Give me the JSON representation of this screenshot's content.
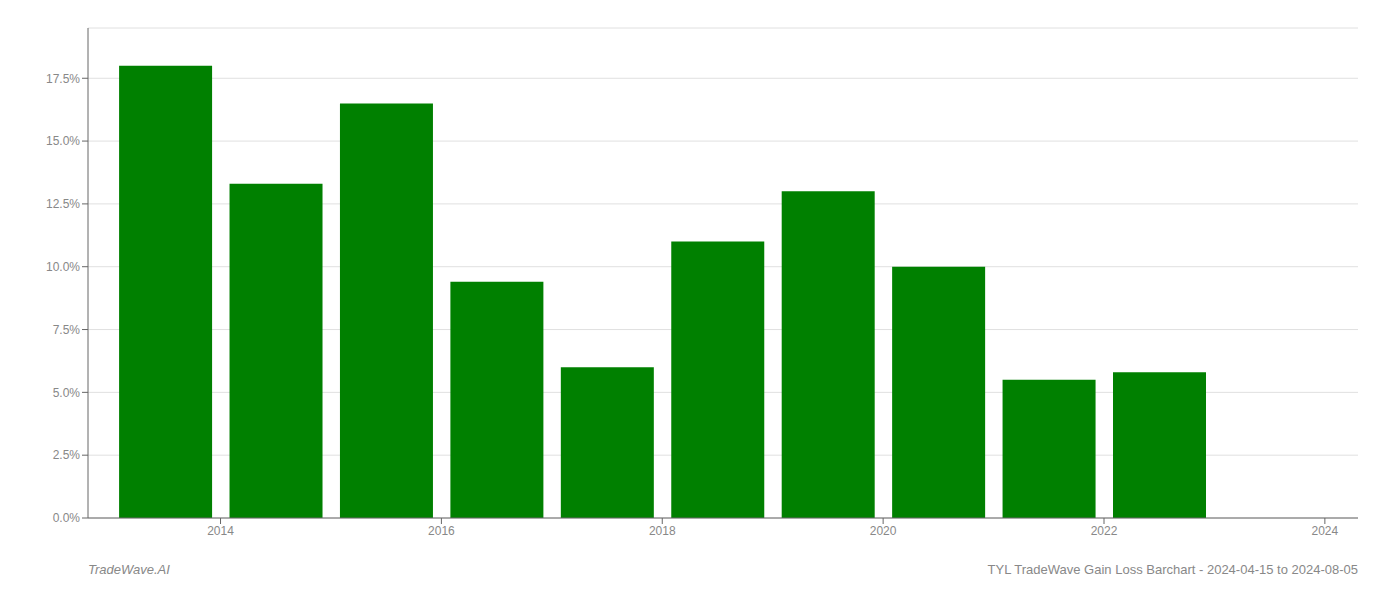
{
  "chart_data": {
    "type": "bar",
    "x": [
      2014,
      2015,
      2016,
      2017,
      2018,
      2019,
      2020,
      2021,
      2022,
      2023
    ],
    "values": [
      0.18,
      0.133,
      0.165,
      0.094,
      0.06,
      0.11,
      0.13,
      0.1,
      0.055,
      0.058
    ],
    "color": "#008000",
    "xlim": [
      2013.3,
      2024.8
    ],
    "xticks": [
      {
        "value": 2014.5,
        "label": "2014"
      },
      {
        "value": 2016.5,
        "label": "2016"
      },
      {
        "value": 2018.5,
        "label": "2018"
      },
      {
        "value": 2020.5,
        "label": "2020"
      },
      {
        "value": 2022.5,
        "label": "2022"
      },
      {
        "value": 2024.5,
        "label": "2024"
      }
    ],
    "ylim": [
      0,
      0.195
    ],
    "yticks": [
      {
        "value": 0.0,
        "label": "0.0%"
      },
      {
        "value": 0.025,
        "label": "2.5%"
      },
      {
        "value": 0.05,
        "label": "5.0%"
      },
      {
        "value": 0.075,
        "label": "7.5%"
      },
      {
        "value": 0.1,
        "label": "10.0%"
      },
      {
        "value": 0.125,
        "label": "12.5%"
      },
      {
        "value": 0.15,
        "label": "15.0%"
      },
      {
        "value": 0.175,
        "label": "17.5%"
      }
    ],
    "grid": true,
    "annotations": [
      "TradeWave.AI",
      "TYL TradeWave Gain Loss Barchart - 2024-04-15 to 2024-08-05"
    ]
  }
}
